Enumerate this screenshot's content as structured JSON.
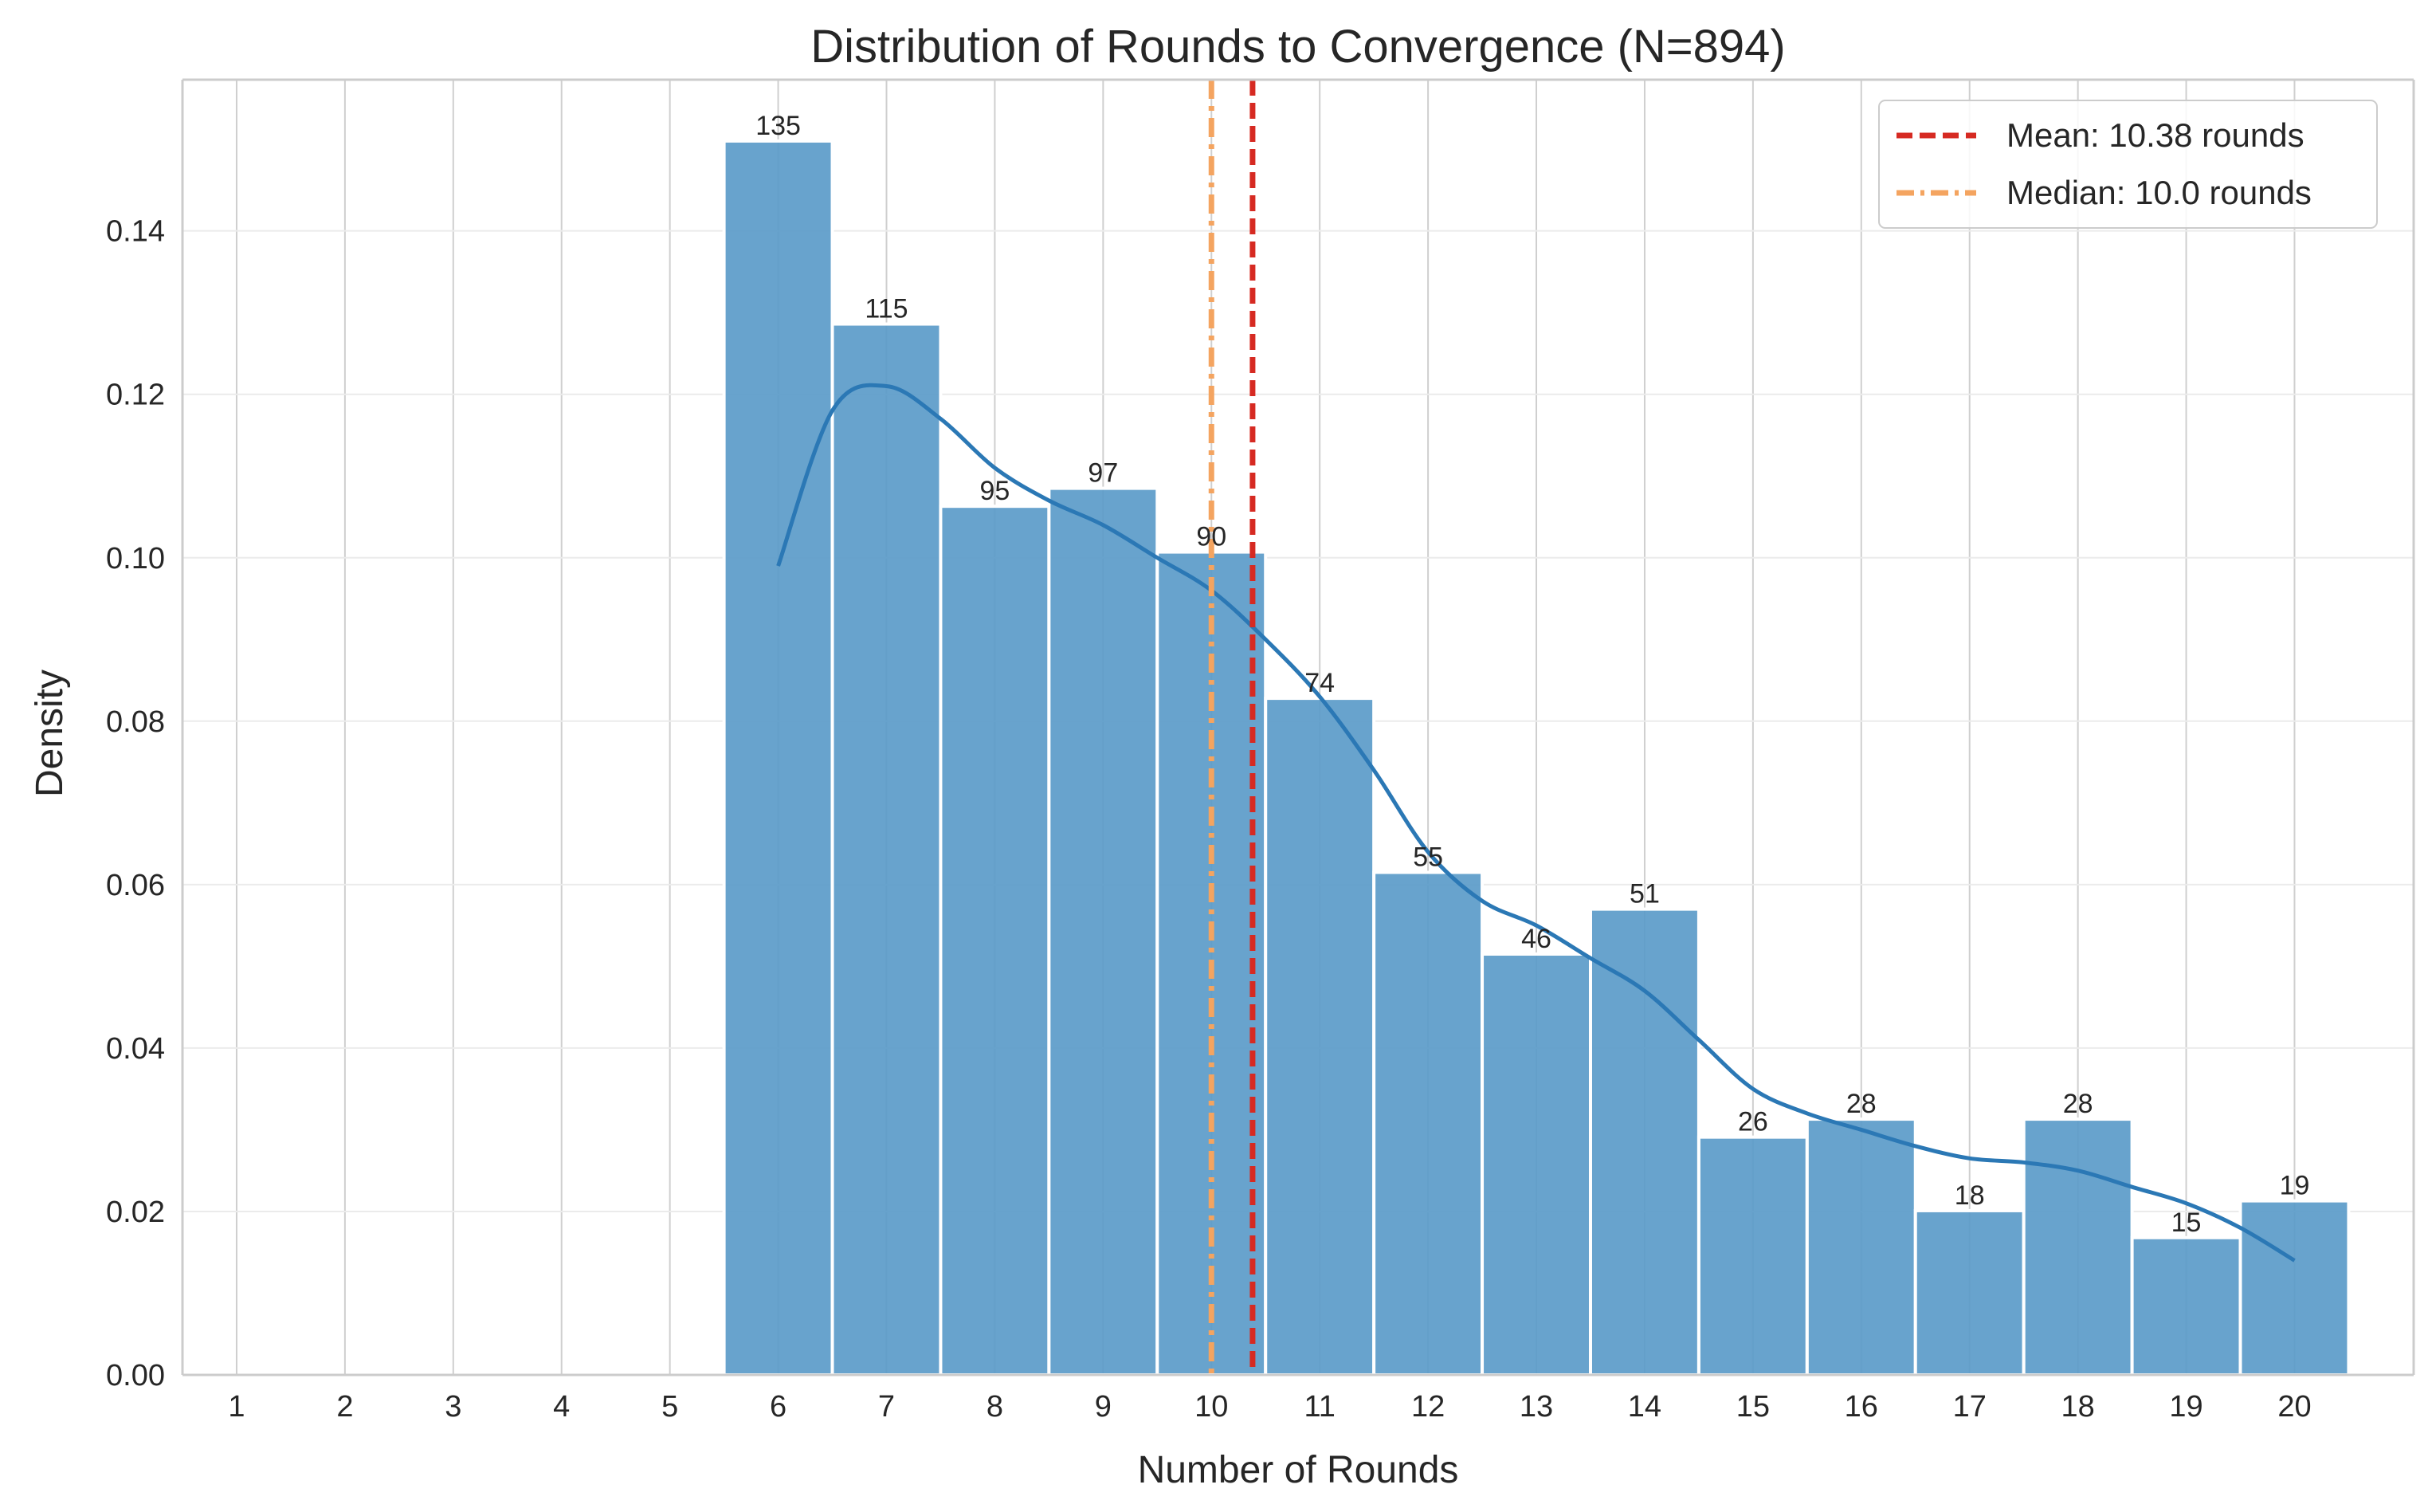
{
  "chart_data": {
    "type": "bar",
    "title": "Distribution of Rounds to Convergence (N=894)",
    "xlabel": "Number of Rounds",
    "ylabel": "Density",
    "xlim": [
      0.5,
      21.1
    ],
    "ylim": [
      0,
      0.1585
    ],
    "xticks": [
      1,
      2,
      3,
      4,
      5,
      6,
      7,
      8,
      9,
      10,
      11,
      12,
      13,
      14,
      15,
      16,
      17,
      18,
      19,
      20
    ],
    "yticks": [
      0.0,
      0.02,
      0.04,
      0.06,
      0.08,
      0.1,
      0.12,
      0.14
    ],
    "ytick_labels": [
      "0.00",
      "0.02",
      "0.04",
      "0.06",
      "0.08",
      "0.10",
      "0.12",
      "0.14"
    ],
    "grid": true,
    "bins": [
      6,
      7,
      8,
      9,
      10,
      11,
      12,
      13,
      14,
      15,
      16,
      17,
      18,
      19,
      20
    ],
    "counts": [
      135,
      115,
      95,
      97,
      90,
      74,
      55,
      46,
      51,
      26,
      28,
      18,
      28,
      15,
      19
    ],
    "count_labels": [
      "135",
      "115",
      "95",
      "97",
      "90",
      "74",
      "55",
      "46",
      "51",
      "26",
      "28",
      "18",
      "28",
      "15",
      "19"
    ],
    "density": [
      0.151,
      0.1286,
      0.1063,
      0.1085,
      0.1007,
      0.0828,
      0.0615,
      0.0515,
      0.057,
      0.0291,
      0.0313,
      0.0201,
      0.0313,
      0.0168,
      0.0213
    ],
    "kde": {
      "x": [
        6,
        6.5,
        7,
        7.5,
        8,
        8.5,
        9,
        9.5,
        10,
        10.5,
        11,
        11.5,
        12,
        12.5,
        13,
        13.5,
        14,
        14.5,
        15,
        15.5,
        16,
        16.5,
        17,
        17.5,
        18,
        18.5,
        19,
        19.5,
        20
      ],
      "y": [
        0.099,
        0.118,
        0.121,
        0.117,
        0.111,
        0.107,
        0.104,
        0.1,
        0.096,
        0.09,
        0.083,
        0.074,
        0.064,
        0.058,
        0.055,
        0.051,
        0.047,
        0.041,
        0.035,
        0.032,
        0.03,
        0.028,
        0.0265,
        0.026,
        0.025,
        0.023,
        0.021,
        0.018,
        0.014
      ]
    },
    "mean": 10.38,
    "median": 10.0,
    "legend": {
      "placement": "top-right",
      "entries": [
        {
          "label": "Mean: 10.38 rounds",
          "color": "#d62a22",
          "style": "dashed"
        },
        {
          "label": "Median: 10.0 rounds",
          "color": "#f4a460",
          "style": "dashdot"
        }
      ]
    },
    "colors": {
      "bar": "#5b9bc9",
      "kde": "#2b78b5",
      "mean": "#d62a22",
      "median": "#f4a460",
      "grid": "#e6e6e6",
      "axis": "#cccccc"
    }
  }
}
